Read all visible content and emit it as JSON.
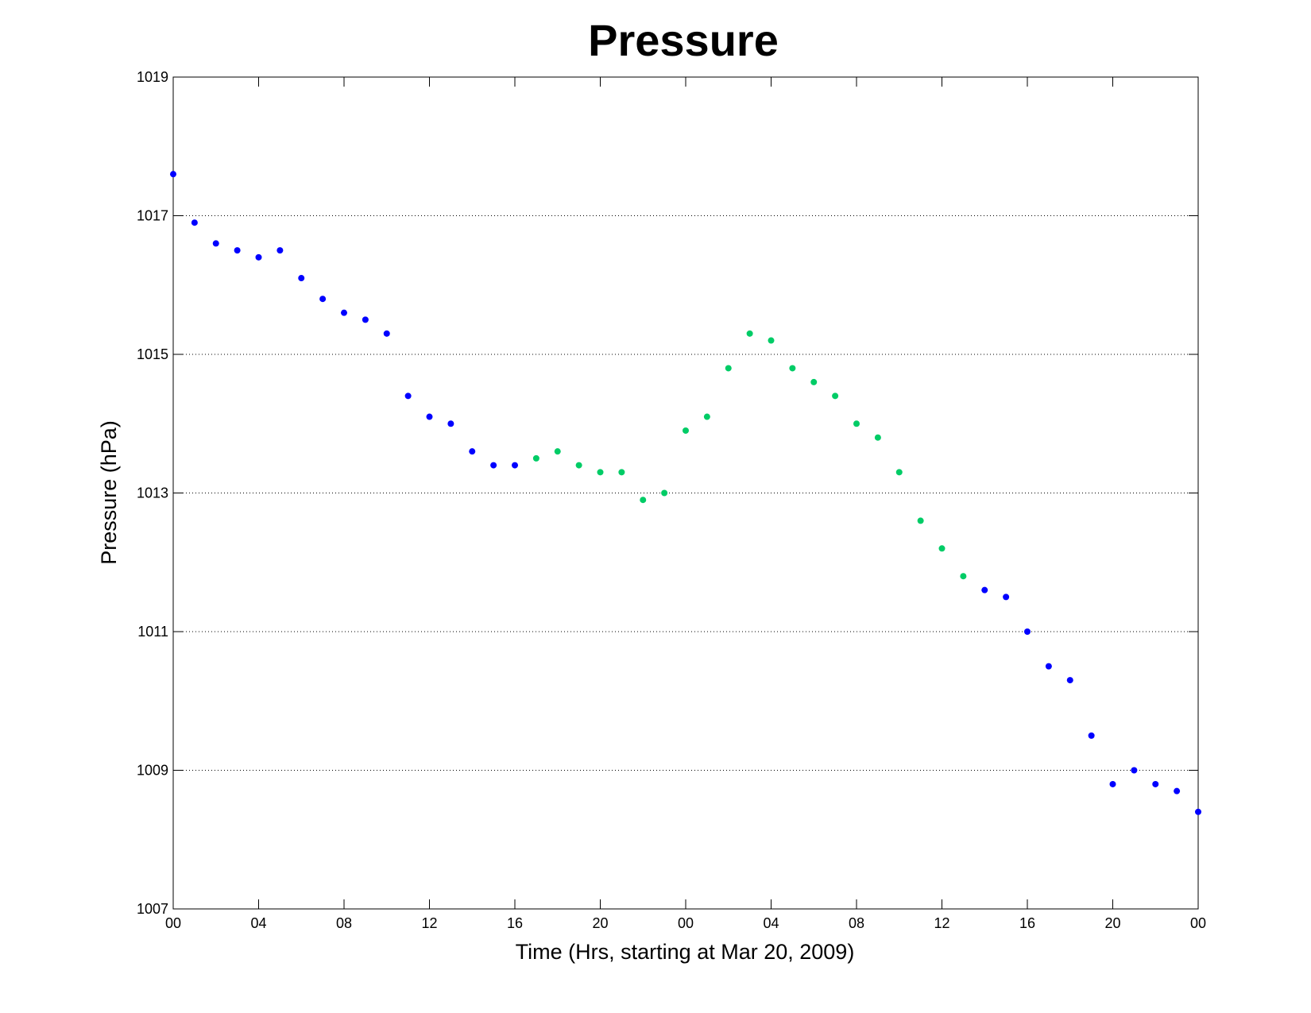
{
  "chart_data": {
    "type": "scatter",
    "title": "Pressure",
    "xlabel": "Time (Hrs, starting at Mar 20, 2009)",
    "ylabel": "Pressure (hPa)",
    "xlim": [
      0,
      48
    ],
    "ylim": [
      1007,
      1019
    ],
    "x_ticks": [
      {
        "hour": 0,
        "label": "00"
      },
      {
        "hour": 4,
        "label": "04"
      },
      {
        "hour": 8,
        "label": "08"
      },
      {
        "hour": 12,
        "label": "12"
      },
      {
        "hour": 16,
        "label": "16"
      },
      {
        "hour": 20,
        "label": "20"
      },
      {
        "hour": 24,
        "label": "00"
      },
      {
        "hour": 28,
        "label": "04"
      },
      {
        "hour": 32,
        "label": "08"
      },
      {
        "hour": 36,
        "label": "12"
      },
      {
        "hour": 40,
        "label": "16"
      },
      {
        "hour": 44,
        "label": "20"
      },
      {
        "hour": 48,
        "label": "00"
      }
    ],
    "y_ticks": [
      1007,
      1009,
      1011,
      1013,
      1015,
      1017,
      1019
    ],
    "grid": "horizontal-dotted",
    "series": [
      {
        "color": "#0000ff",
        "x": [
          0,
          1,
          2,
          3,
          4,
          5,
          6,
          7,
          8,
          9,
          10,
          11,
          12,
          13,
          14,
          15,
          16,
          38,
          39,
          40,
          41,
          42,
          43,
          44,
          45,
          46,
          47,
          48
        ],
        "y": [
          1017.6,
          1016.9,
          1016.6,
          1016.5,
          1016.4,
          1016.5,
          1016.1,
          1015.8,
          1015.6,
          1015.5,
          1015.3,
          1014.4,
          1014.1,
          1014.0,
          1013.6,
          1013.4,
          1013.4,
          1011.6,
          1011.5,
          1011.0,
          1010.5,
          1010.3,
          1009.5,
          1008.8,
          1009.0,
          1008.8,
          1008.7,
          1008.4
        ]
      },
      {
        "color": "#00cc66",
        "x": [
          17,
          18,
          19,
          20,
          21,
          22,
          23,
          24,
          25,
          26,
          27,
          28,
          29,
          30,
          31,
          32,
          33,
          34,
          35,
          36,
          37
        ],
        "y": [
          1013.5,
          1013.6,
          1013.4,
          1013.3,
          1013.3,
          1012.9,
          1013.0,
          1013.9,
          1014.1,
          1014.8,
          1015.3,
          1015.2,
          1014.8,
          1014.6,
          1014.4,
          1014.0,
          1013.8,
          1013.3,
          1012.6,
          1012.2,
          1011.8
        ]
      }
    ]
  }
}
